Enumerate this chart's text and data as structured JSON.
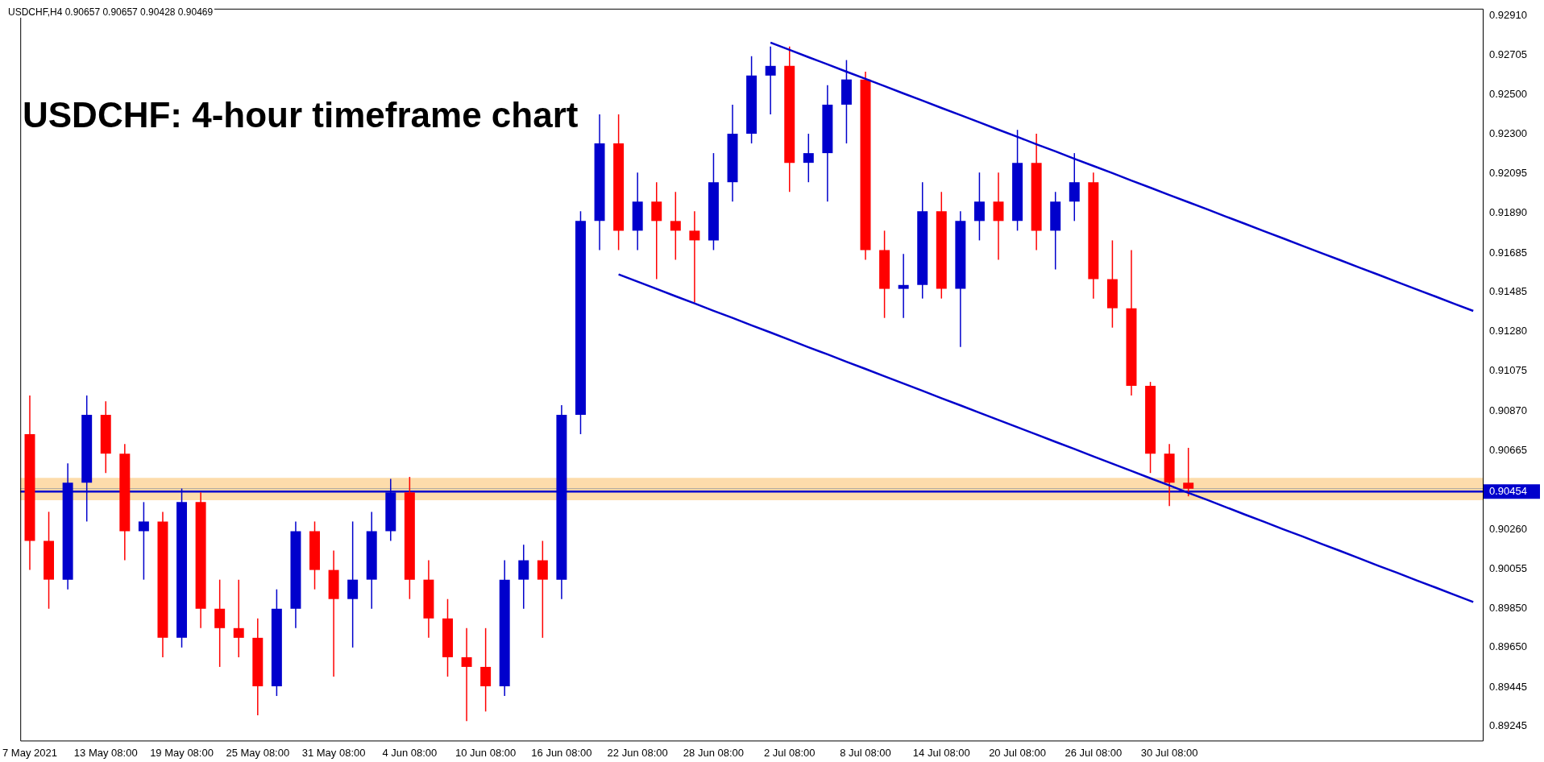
{
  "chart_data": {
    "type": "candlestick",
    "title": "USDCHF: 4-hour timeframe chart",
    "annotations": [
      "USDCHF,H4 0.90657 0.90657 0.90428 0.90469"
    ],
    "categories": [
      "7 May 2021",
      null,
      null,
      null,
      "13 May 08:00",
      null,
      null,
      null,
      "19 May 08:00",
      null,
      null,
      null,
      "25 May 08:00",
      null,
      null,
      null,
      "31 May 08:00",
      null,
      null,
      null,
      "4 Jun 08:00",
      null,
      null,
      null,
      "10 Jun 08:00",
      null,
      null,
      null,
      "16 Jun 08:00",
      null,
      null,
      null,
      "22 Jun 08:00",
      null,
      null,
      null,
      "28 Jun 08:00",
      null,
      null,
      null,
      "2 Jul 08:00",
      null,
      null,
      null,
      "8 Jul 08:00",
      null,
      null,
      null,
      "14 Jul 08:00",
      null,
      null,
      null,
      "20 Jul 08:00",
      null,
      null,
      null,
      "26 Jul 08:00",
      null,
      null,
      null,
      "30 Jul 08:00",
      null,
      null,
      null,
      null,
      null,
      null,
      null,
      null,
      null,
      null,
      null,
      null,
      null,
      null,
      null,
      null
    ],
    "ohlc": [
      [
        0.9075,
        0.9095,
        0.9005,
        0.902
      ],
      [
        0.902,
        0.9035,
        0.8985,
        0.9
      ],
      [
        0.9,
        0.906,
        0.8995,
        0.905
      ],
      [
        0.905,
        0.9095,
        0.903,
        0.9085
      ],
      [
        0.9085,
        0.9092,
        0.9055,
        0.9065
      ],
      [
        0.9065,
        0.907,
        0.901,
        0.9025
      ],
      [
        0.9025,
        0.904,
        0.9,
        0.903
      ],
      [
        0.903,
        0.9035,
        0.896,
        0.897
      ],
      [
        0.897,
        0.9047,
        0.8965,
        0.904
      ],
      [
        0.904,
        0.9045,
        0.8975,
        0.8985
      ],
      [
        0.8985,
        0.9,
        0.8955,
        0.8975
      ],
      [
        0.8975,
        0.9,
        0.896,
        0.897
      ],
      [
        0.897,
        0.898,
        0.893,
        0.8945
      ],
      [
        0.8945,
        0.8995,
        0.894,
        0.8985
      ],
      [
        0.8985,
        0.903,
        0.8975,
        0.9025
      ],
      [
        0.9025,
        0.903,
        0.8995,
        0.9005
      ],
      [
        0.9005,
        0.9015,
        0.895,
        0.899
      ],
      [
        0.899,
        0.903,
        0.8965,
        0.9
      ],
      [
        0.9,
        0.9035,
        0.8985,
        0.9025
      ],
      [
        0.9025,
        0.9052,
        0.902,
        0.9045
      ],
      [
        0.9045,
        0.9053,
        0.899,
        0.9
      ],
      [
        0.9,
        0.901,
        0.897,
        0.898
      ],
      [
        0.898,
        0.899,
        0.895,
        0.896
      ],
      [
        0.896,
        0.8975,
        0.8927,
        0.8955
      ],
      [
        0.8955,
        0.8975,
        0.8932,
        0.8945
      ],
      [
        0.8945,
        0.901,
        0.894,
        0.9
      ],
      [
        0.9,
        0.9018,
        0.8985,
        0.901
      ],
      [
        0.901,
        0.902,
        0.897,
        0.9
      ],
      [
        0.9,
        0.909,
        0.899,
        0.9085
      ],
      [
        0.9085,
        0.919,
        0.9075,
        0.9185
      ],
      [
        0.9185,
        0.924,
        0.917,
        0.9225
      ],
      [
        0.9225,
        0.924,
        0.917,
        0.918
      ],
      [
        0.918,
        0.921,
        0.917,
        0.9195
      ],
      [
        0.9195,
        0.9205,
        0.9155,
        0.9185
      ],
      [
        0.9185,
        0.92,
        0.9165,
        0.918
      ],
      [
        0.918,
        0.919,
        0.9143,
        0.9175
      ],
      [
        0.9175,
        0.922,
        0.917,
        0.9205
      ],
      [
        0.9205,
        0.9245,
        0.9195,
        0.923
      ],
      [
        0.923,
        0.927,
        0.9225,
        0.926
      ],
      [
        0.926,
        0.9275,
        0.924,
        0.9265
      ],
      [
        0.9265,
        0.9275,
        0.92,
        0.9215
      ],
      [
        0.9215,
        0.923,
        0.9205,
        0.922
      ],
      [
        0.922,
        0.9255,
        0.9195,
        0.9245
      ],
      [
        0.9245,
        0.9268,
        0.9225,
        0.9258
      ],
      [
        0.9258,
        0.9262,
        0.9165,
        0.917
      ],
      [
        0.917,
        0.918,
        0.9135,
        0.915
      ],
      [
        0.915,
        0.9168,
        0.9135,
        0.9152
      ],
      [
        0.9152,
        0.9205,
        0.9145,
        0.919
      ],
      [
        0.919,
        0.92,
        0.9145,
        0.915
      ],
      [
        0.915,
        0.919,
        0.912,
        0.9185
      ],
      [
        0.9185,
        0.921,
        0.9175,
        0.9195
      ],
      [
        0.9195,
        0.921,
        0.9165,
        0.9185
      ],
      [
        0.9185,
        0.9232,
        0.918,
        0.9215
      ],
      [
        0.9215,
        0.923,
        0.917,
        0.918
      ],
      [
        0.918,
        0.92,
        0.916,
        0.9195
      ],
      [
        0.9195,
        0.922,
        0.9185,
        0.9205
      ],
      [
        0.9205,
        0.921,
        0.9145,
        0.9155
      ],
      [
        0.9155,
        0.9175,
        0.913,
        0.914
      ],
      [
        0.914,
        0.917,
        0.9095,
        0.91
      ],
      [
        0.91,
        0.9102,
        0.9055,
        0.9065
      ],
      [
        0.9065,
        0.907,
        0.9038,
        0.905
      ],
      [
        0.905,
        0.9068,
        0.9043,
        0.90469
      ],
      null,
      null,
      null,
      null,
      null,
      null,
      null,
      null,
      null,
      null,
      null,
      null,
      null,
      null,
      null
    ],
    "colors": [
      "#ff0000",
      "#ff0000",
      "#0000cc",
      "#0000cc",
      "#ff0000",
      "#ff0000",
      "#0000cc",
      "#ff0000",
      "#0000cc",
      "#ff0000",
      "#ff0000",
      "#ff0000",
      "#ff0000",
      "#0000cc",
      "#0000cc",
      "#ff0000",
      "#ff0000",
      "#0000cc",
      "#0000cc",
      "#0000cc",
      "#ff0000",
      "#ff0000",
      "#ff0000",
      "#ff0000",
      "#ff0000",
      "#0000cc",
      "#0000cc",
      "#ff0000",
      "#0000cc",
      "#0000cc",
      "#0000cc",
      "#ff0000",
      "#0000cc",
      "#ff0000",
      "#ff0000",
      "#ff0000",
      "#0000cc",
      "#0000cc",
      "#0000cc",
      "#0000cc",
      "#ff0000",
      "#0000cc",
      "#0000cc",
      "#0000cc",
      "#ff0000",
      "#ff0000",
      "#0000cc",
      "#0000cc",
      "#ff0000",
      "#0000cc",
      "#0000cc",
      "#ff0000",
      "#0000cc",
      "#ff0000",
      "#0000cc",
      "#0000cc",
      "#ff0000",
      "#ff0000",
      "#ff0000",
      "#ff0000",
      "#ff0000",
      "#ff0000",
      null,
      null,
      null,
      null,
      null,
      null,
      null,
      null,
      null,
      null,
      null,
      null,
      null,
      null,
      null
    ],
    "series": [
      {
        "type": "line",
        "color": "#0000cc",
        "values": [
          null,
          null,
          null,
          null,
          null,
          null,
          null,
          null,
          null,
          null,
          null,
          null,
          null,
          null,
          null,
          null,
          null,
          null,
          null,
          null,
          null,
          null,
          null,
          null,
          null,
          null,
          null,
          null,
          null,
          null,
          null,
          null,
          null,
          null,
          null,
          null,
          null,
          null,
          null,
          0.9277,
          0.92733,
          0.92695,
          0.92658,
          0.9262,
          0.92583,
          0.92546,
          0.92508,
          0.92471,
          0.92433,
          0.92396,
          0.92359,
          0.92321,
          0.92284,
          0.92246,
          0.92209,
          0.92171,
          0.92134,
          0.92097,
          0.92059,
          0.92022,
          0.91984,
          0.91947,
          0.9191,
          0.91872,
          0.91835,
          0.91797,
          0.9176,
          0.91722,
          0.91685,
          0.91648,
          0.9161,
          0.91573,
          0.91535,
          0.91498,
          0.91461,
          0.91423,
          0.91386
        ]
      },
      {
        "type": "line",
        "color": "#0000cc",
        "values": [
          null,
          null,
          null,
          null,
          null,
          null,
          null,
          null,
          null,
          null,
          null,
          null,
          null,
          null,
          null,
          null,
          null,
          null,
          null,
          null,
          null,
          null,
          null,
          null,
          null,
          null,
          null,
          null,
          null,
          null,
          null,
          0.91575,
          0.91537,
          0.915,
          0.91462,
          0.91425,
          0.91387,
          0.9135,
          0.91312,
          0.91275,
          0.91237,
          0.91199,
          0.91162,
          0.91124,
          0.91087,
          0.91049,
          0.91012,
          0.90974,
          0.90936,
          0.90899,
          0.90861,
          0.90824,
          0.90786,
          0.90749,
          0.90711,
          0.90674,
          0.90636,
          0.90598,
          0.90561,
          0.90523,
          0.90486,
          0.90448,
          0.90411,
          0.90373,
          0.90335,
          0.90298,
          0.9026,
          0.90223,
          0.90185,
          0.90148,
          0.9011,
          0.90072,
          0.90035,
          0.89997,
          0.8996,
          0.89922,
          0.89885
        ]
      }
    ],
    "marker": "none",
    "ylim": [
      0.8917,
      0.92945
    ],
    "yticks": [
      {
        "value": 0.9291,
        "label": "0.92910"
      },
      0.92705,
      {
        "value": 0.925,
        "label": "0.92500"
      },
      {
        "value": 0.923,
        "label": "0.92300"
      },
      0.92095,
      {
        "value": 0.9189,
        "label": "0.91890"
      },
      0.91685,
      0.91485,
      {
        "value": 0.9128,
        "label": "0.91280"
      },
      0.91075,
      {
        "value": 0.9087,
        "label": "0.90870"
      },
      0.90665,
      {
        "value": 0.9026,
        "label": "0.90260"
      },
      0.90055,
      {
        "value": 0.8985,
        "label": "0.89850"
      },
      {
        "value": 0.8965,
        "label": "0.89650"
      },
      0.89445,
      0.89245
    ],
    "ref_lines": [
      {
        "axis": "y",
        "value": 0.90469,
        "label": null,
        "color": "#a0a0a0"
      },
      {
        "axis": "y",
        "value": 0.90454,
        "label": "0.90454",
        "color": "#0000cc"
      }
    ],
    "bands": [
      {
        "axis": "y",
        "from": 0.9041,
        "to": 0.90525,
        "label": null,
        "color": "#fddcab"
      }
    ]
  }
}
